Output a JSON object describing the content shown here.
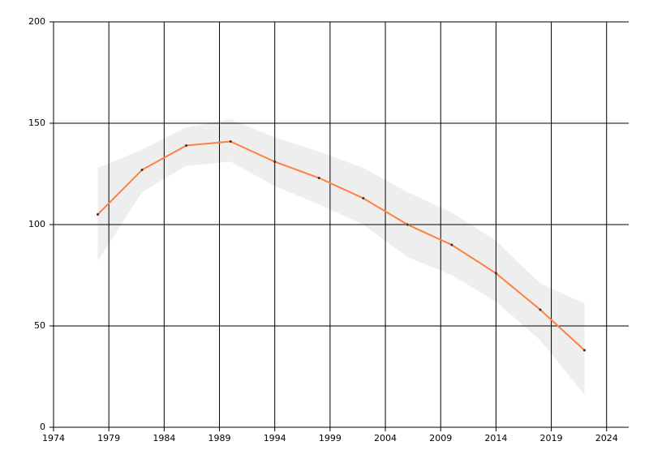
{
  "chart_data": {
    "type": "line",
    "x": [
      1978,
      1982,
      1986,
      1990,
      1994,
      1998,
      2002,
      2006,
      2010,
      2014,
      2018,
      2022
    ],
    "values": [
      105,
      127,
      139,
      141,
      131,
      123,
      113,
      100,
      90,
      76,
      58,
      38
    ],
    "color": "#ff7f3f",
    "band": {
      "upper": [
        128,
        137,
        148,
        152,
        143,
        136,
        128,
        116,
        106,
        92,
        71,
        61
      ],
      "lower": [
        82,
        116,
        129,
        131,
        119,
        110,
        100,
        84,
        75,
        62,
        43,
        16
      ],
      "color": "#eeeeee"
    },
    "xlim": [
      1974,
      2026
    ],
    "xticks": [
      1974,
      1979,
      1984,
      1989,
      1994,
      1999,
      2004,
      2009,
      2014,
      2019,
      2024
    ],
    "ylim": [
      0,
      200
    ],
    "yticks": [
      0,
      50,
      100,
      150,
      200
    ],
    "grid": true
  }
}
